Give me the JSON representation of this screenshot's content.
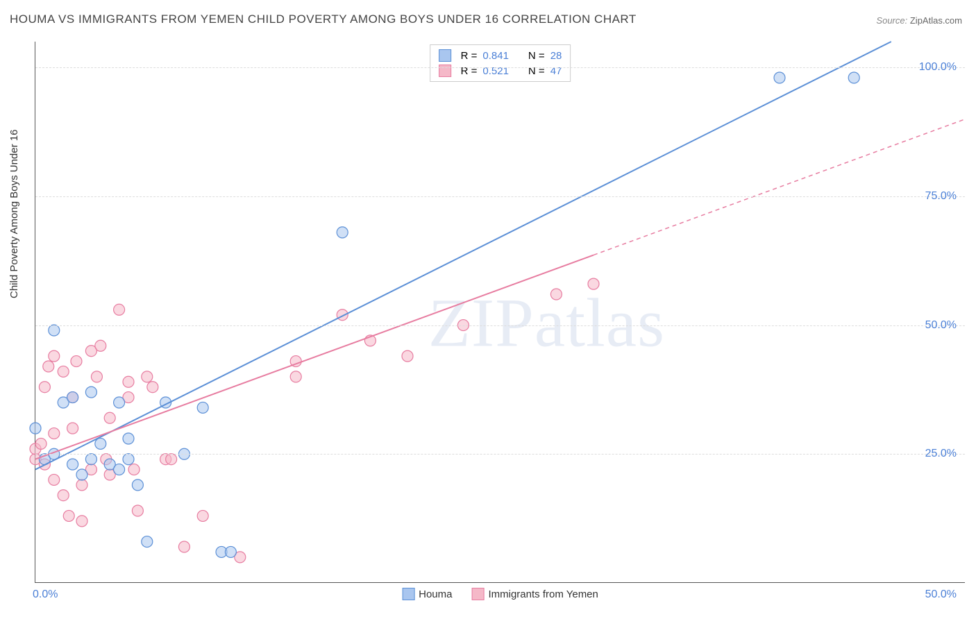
{
  "title": "HOUMA VS IMMIGRANTS FROM YEMEN CHILD POVERTY AMONG BOYS UNDER 16 CORRELATION CHART",
  "source_label": "Source:",
  "source_value": "ZipAtlas.com",
  "yaxis_label": "Child Poverty Among Boys Under 16",
  "watermark": "ZIPatlas",
  "chart": {
    "type": "scatter",
    "xlim": [
      0,
      50
    ],
    "ylim": [
      0,
      105
    ],
    "xtick_labels": [
      "0.0%",
      "50.0%"
    ],
    "xtick_pos": [
      0,
      50
    ],
    "ytick_labels": [
      "25.0%",
      "50.0%",
      "75.0%",
      "100.0%"
    ],
    "ytick_pos": [
      25,
      50,
      75,
      100
    ],
    "background_color": "#ffffff",
    "grid_color": "#dddddd",
    "marker_radius": 8,
    "marker_opacity": 0.55,
    "line_width": 2,
    "series": [
      {
        "name": "Houma",
        "color_fill": "#a9c6ef",
        "color_stroke": "#5b8fd6",
        "r": 0.841,
        "n": 28,
        "trend": {
          "x1": 0,
          "y1": 22,
          "x2": 46,
          "y2": 105,
          "solid_until_x": 46
        },
        "points": [
          [
            0,
            30
          ],
          [
            0.5,
            24
          ],
          [
            1,
            25
          ],
          [
            1,
            49
          ],
          [
            1.5,
            35
          ],
          [
            2,
            36
          ],
          [
            2,
            23
          ],
          [
            2.5,
            21
          ],
          [
            3,
            37
          ],
          [
            3,
            24
          ],
          [
            3.5,
            27
          ],
          [
            4,
            23
          ],
          [
            4.5,
            22
          ],
          [
            4.5,
            35
          ],
          [
            5,
            28
          ],
          [
            5,
            24
          ],
          [
            5.5,
            19
          ],
          [
            6,
            8
          ],
          [
            7,
            35
          ],
          [
            8,
            25
          ],
          [
            9,
            34
          ],
          [
            10,
            6
          ],
          [
            10.5,
            6
          ],
          [
            16.5,
            68
          ],
          [
            40,
            98
          ],
          [
            44,
            98
          ]
        ]
      },
      {
        "name": "Immigrants from Yemen",
        "color_fill": "#f5b8c8",
        "color_stroke": "#e77ca0",
        "r": 0.521,
        "n": 47,
        "trend": {
          "x1": 0,
          "y1": 24,
          "x2": 50,
          "y2": 90,
          "solid_until_x": 30
        },
        "points": [
          [
            0,
            24
          ],
          [
            0,
            26
          ],
          [
            0.3,
            27
          ],
          [
            0.5,
            23
          ],
          [
            0.5,
            38
          ],
          [
            0.7,
            42
          ],
          [
            1,
            44
          ],
          [
            1,
            29
          ],
          [
            1,
            20
          ],
          [
            1.5,
            41
          ],
          [
            1.5,
            17
          ],
          [
            1.8,
            13
          ],
          [
            2,
            36
          ],
          [
            2,
            30
          ],
          [
            2.2,
            43
          ],
          [
            2.5,
            19
          ],
          [
            2.5,
            12
          ],
          [
            3,
            45
          ],
          [
            3,
            22
          ],
          [
            3.3,
            40
          ],
          [
            3.5,
            46
          ],
          [
            3.8,
            24
          ],
          [
            4,
            32
          ],
          [
            4,
            21
          ],
          [
            4.5,
            53
          ],
          [
            5,
            39
          ],
          [
            5,
            36
          ],
          [
            5.3,
            22
          ],
          [
            5.5,
            14
          ],
          [
            6,
            40
          ],
          [
            6.3,
            38
          ],
          [
            7,
            24
          ],
          [
            7.3,
            24
          ],
          [
            8,
            7
          ],
          [
            9,
            13
          ],
          [
            11,
            5
          ],
          [
            14,
            43
          ],
          [
            14,
            40
          ],
          [
            16.5,
            52
          ],
          [
            18,
            47
          ],
          [
            20,
            44
          ],
          [
            23,
            50
          ],
          [
            28,
            56
          ],
          [
            30,
            58
          ]
        ]
      }
    ]
  },
  "legend_bottom": [
    {
      "label": "Houma",
      "fill": "#a9c6ef",
      "stroke": "#5b8fd6"
    },
    {
      "label": "Immigrants from Yemen",
      "fill": "#f5b8c8",
      "stroke": "#e77ca0"
    }
  ]
}
